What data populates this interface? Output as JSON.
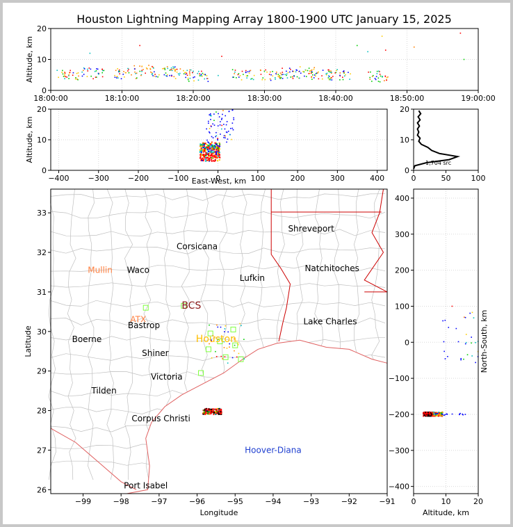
{
  "title": "Houston Lightning Mapping Array 1800-1900 UTC January 15, 2025",
  "chart_data": [
    {
      "id": "time_altitude",
      "type": "scatter",
      "ylabel": "Altitude, km",
      "xlabel": "",
      "x_tick_labels": [
        "18:00:00",
        "18:10:00",
        "18:20:00",
        "18:30:00",
        "18:40:00",
        "18:50:00",
        "19:00:00"
      ],
      "x_ticks_min": [
        0,
        10,
        20,
        30,
        40,
        50,
        60
      ],
      "xlim_min": [
        0,
        60
      ],
      "ylim": [
        0,
        20
      ],
      "y_ticks": [
        0,
        10,
        20
      ],
      "grid": true,
      "clusters": [
        {
          "t": 2.5,
          "alt": 5.0
        },
        {
          "t": 6.0,
          "alt": 5.5
        },
        {
          "t": 10.5,
          "alt": 5.5
        },
        {
          "t": 13.0,
          "alt": 6.5
        },
        {
          "t": 16.0,
          "alt": 6.0
        },
        {
          "t": 18.5,
          "alt": 5.5
        },
        {
          "t": 20.5,
          "alt": 4.5
        },
        {
          "t": 27.0,
          "alt": 5.0
        },
        {
          "t": 31.0,
          "alt": 5.0
        },
        {
          "t": 33.5,
          "alt": 5.5
        },
        {
          "t": 35.5,
          "alt": 6.0
        },
        {
          "t": 38.0,
          "alt": 5.0
        },
        {
          "t": 40.5,
          "alt": 5.0
        },
        {
          "t": 46.0,
          "alt": 4.5
        }
      ],
      "scattered": [
        {
          "t": 12.5,
          "alt": 14.5
        },
        {
          "t": 5.5,
          "alt": 12.0
        },
        {
          "t": 23.5,
          "alt": 4.8
        },
        {
          "t": 24.0,
          "alt": 11.0
        },
        {
          "t": 46.5,
          "alt": 17.5
        },
        {
          "t": 47.0,
          "alt": 13.0
        },
        {
          "t": 51.0,
          "alt": 14.0
        },
        {
          "t": 57.5,
          "alt": 18.5
        },
        {
          "t": 58.0,
          "alt": 10.0
        },
        {
          "t": 44.5,
          "alt": 12.5
        },
        {
          "t": 43.0,
          "alt": 14.5
        }
      ]
    },
    {
      "id": "ew_altitude",
      "type": "scatter",
      "xlabel": "East-West, km",
      "ylabel": "Altitude, km",
      "xlim": [
        -420,
        425
      ],
      "ylim": [
        0,
        20
      ],
      "x_ticks": [
        -400,
        -300,
        -200,
        -100,
        0,
        100,
        200,
        300,
        400
      ],
      "y_ticks": [
        0,
        10,
        20
      ],
      "grid": true,
      "core": {
        "x_range": [
          -45,
          5
        ],
        "alt_range": [
          3,
          9
        ]
      },
      "upper": {
        "x_range": [
          -30,
          40
        ],
        "alt_range": [
          9,
          20
        ]
      }
    },
    {
      "id": "altitude_histogram",
      "type": "line",
      "xlim": [
        0,
        100
      ],
      "ylim": [
        0,
        20
      ],
      "x_ticks": [
        0,
        50,
        100
      ],
      "y_ticks": [
        0,
        10,
        20
      ],
      "annotation": "1,704 src",
      "profile": [
        {
          "alt": 0.5,
          "n": 0
        },
        {
          "alt": 1.5,
          "n": 2
        },
        {
          "alt": 2.5,
          "n": 20
        },
        {
          "alt": 3.5,
          "n": 55
        },
        {
          "alt": 4.5,
          "n": 68
        },
        {
          "alt": 5.5,
          "n": 40
        },
        {
          "alt": 6.5,
          "n": 28
        },
        {
          "alt": 7.5,
          "n": 22
        },
        {
          "alt": 8.5,
          "n": 12
        },
        {
          "alt": 9.5,
          "n": 8
        },
        {
          "alt": 10.5,
          "n": 10
        },
        {
          "alt": 11.5,
          "n": 6
        },
        {
          "alt": 12.5,
          "n": 8
        },
        {
          "alt": 13.5,
          "n": 6
        },
        {
          "alt": 14.5,
          "n": 9
        },
        {
          "alt": 15.5,
          "n": 6
        },
        {
          "alt": 16.5,
          "n": 10
        },
        {
          "alt": 17.5,
          "n": 7
        },
        {
          "alt": 18.5,
          "n": 11
        },
        {
          "alt": 19.5,
          "n": 8
        }
      ]
    },
    {
      "id": "plan_view",
      "type": "scatter",
      "xlabel": "Longitude",
      "ylabel": "Latitude",
      "xlim": [
        -99.85,
        -91.0
      ],
      "ylim": [
        25.9,
        33.6
      ],
      "x_ticks": [
        -99,
        -98,
        -97,
        -96,
        -95,
        -94,
        -93,
        -92,
        -91
      ],
      "y_ticks": [
        26,
        27,
        28,
        29,
        30,
        31,
        32,
        33
      ],
      "cities": [
        {
          "name": "Shreveport",
          "lon": -93.0,
          "lat": 32.6,
          "color": "#000000",
          "size": 12
        },
        {
          "name": "Corsicana",
          "lon": -96.0,
          "lat": 32.15,
          "color": "#000000",
          "size": 12
        },
        {
          "name": "Natchitoches",
          "lon": -92.45,
          "lat": 31.6,
          "color": "#000000",
          "size": 12
        },
        {
          "name": "Mullin",
          "lon": -98.55,
          "lat": 31.55,
          "color": "#ff7f3f",
          "size": 12
        },
        {
          "name": "Waco",
          "lon": -97.55,
          "lat": 31.55,
          "color": "#000000",
          "size": 12
        },
        {
          "name": "Lufkin",
          "lon": -94.55,
          "lat": 31.35,
          "color": "#000000",
          "size": 12
        },
        {
          "name": "BCS",
          "lon": -96.15,
          "lat": 30.65,
          "color": "#8b1a1a",
          "size": 14
        },
        {
          "name": "ATX",
          "lon": -97.55,
          "lat": 30.3,
          "color": "#ff7f3f",
          "size": 12
        },
        {
          "name": "Bastrop",
          "lon": -97.4,
          "lat": 30.15,
          "color": "#000000",
          "size": 12
        },
        {
          "name": "Lake Charles",
          "lon": -92.5,
          "lat": 30.25,
          "color": "#000000",
          "size": 12
        },
        {
          "name": "Boerne",
          "lon": -98.9,
          "lat": 29.8,
          "color": "#000000",
          "size": 12
        },
        {
          "name": "Houston",
          "lon": -95.5,
          "lat": 29.8,
          "color": "#ffbf00",
          "size": 14
        },
        {
          "name": "Shiner",
          "lon": -97.1,
          "lat": 29.45,
          "color": "#000000",
          "size": 12
        },
        {
          "name": "Victoria",
          "lon": -96.8,
          "lat": 28.85,
          "color": "#000000",
          "size": 12
        },
        {
          "name": "Tilden",
          "lon": -98.45,
          "lat": 28.5,
          "color": "#000000",
          "size": 12
        },
        {
          "name": "Corpus Christi",
          "lon": -96.95,
          "lat": 27.8,
          "color": "#000000",
          "size": 12
        },
        {
          "name": "Hoover-Diana",
          "lon": -94.0,
          "lat": 27.0,
          "color": "#1f3fd0",
          "size": 12
        },
        {
          "name": "Port Isabel",
          "lon": -97.35,
          "lat": 26.1,
          "color": "#000000",
          "size": 12
        }
      ],
      "stations": [
        {
          "lon": -97.35,
          "lat": 30.6
        },
        {
          "lon": -96.35,
          "lat": 30.65
        },
        {
          "lon": -95.65,
          "lat": 29.95
        },
        {
          "lon": -95.05,
          "lat": 30.05
        },
        {
          "lon": -95.0,
          "lat": 29.65
        },
        {
          "lon": -95.25,
          "lat": 29.35
        },
        {
          "lon": -94.85,
          "lat": 29.3
        },
        {
          "lon": -95.7,
          "lat": 29.55
        },
        {
          "lon": -95.9,
          "lat": 28.95
        },
        {
          "lon": -95.4,
          "lat": 29.75
        }
      ],
      "source_region": {
        "lon_range": [
          -95.85,
          -95.35
        ],
        "lat_range": [
          27.9,
          28.05
        ]
      }
    },
    {
      "id": "ns_altitude",
      "type": "scatter",
      "xlabel": "Altitude, km",
      "ylabel": "North-South, km",
      "xlim": [
        0,
        20
      ],
      "ylim": [
        -420,
        425
      ],
      "x_ticks": [
        0,
        10,
        20
      ],
      "y_ticks": [
        -400,
        -300,
        -200,
        -100,
        0,
        100,
        200,
        300,
        400
      ],
      "grid": true,
      "core": {
        "alt_range": [
          3,
          9
        ],
        "y_range": [
          -205,
          -194
        ]
      },
      "upper": {
        "alt_range": [
          9,
          20
        ],
        "y_range": [
          -60,
          100
        ]
      }
    }
  ],
  "palette": {
    "axes": "#000000",
    "grid": "#d9d9d9",
    "county": "#bfbfbf",
    "state": "#cc0000",
    "coast": "#e06060",
    "station": "#7fff3f",
    "sources": [
      "#0000ff",
      "#00bfbf",
      "#00cc00",
      "#ffcc00",
      "#ff7f00",
      "#ff0000",
      "#000000"
    ]
  }
}
